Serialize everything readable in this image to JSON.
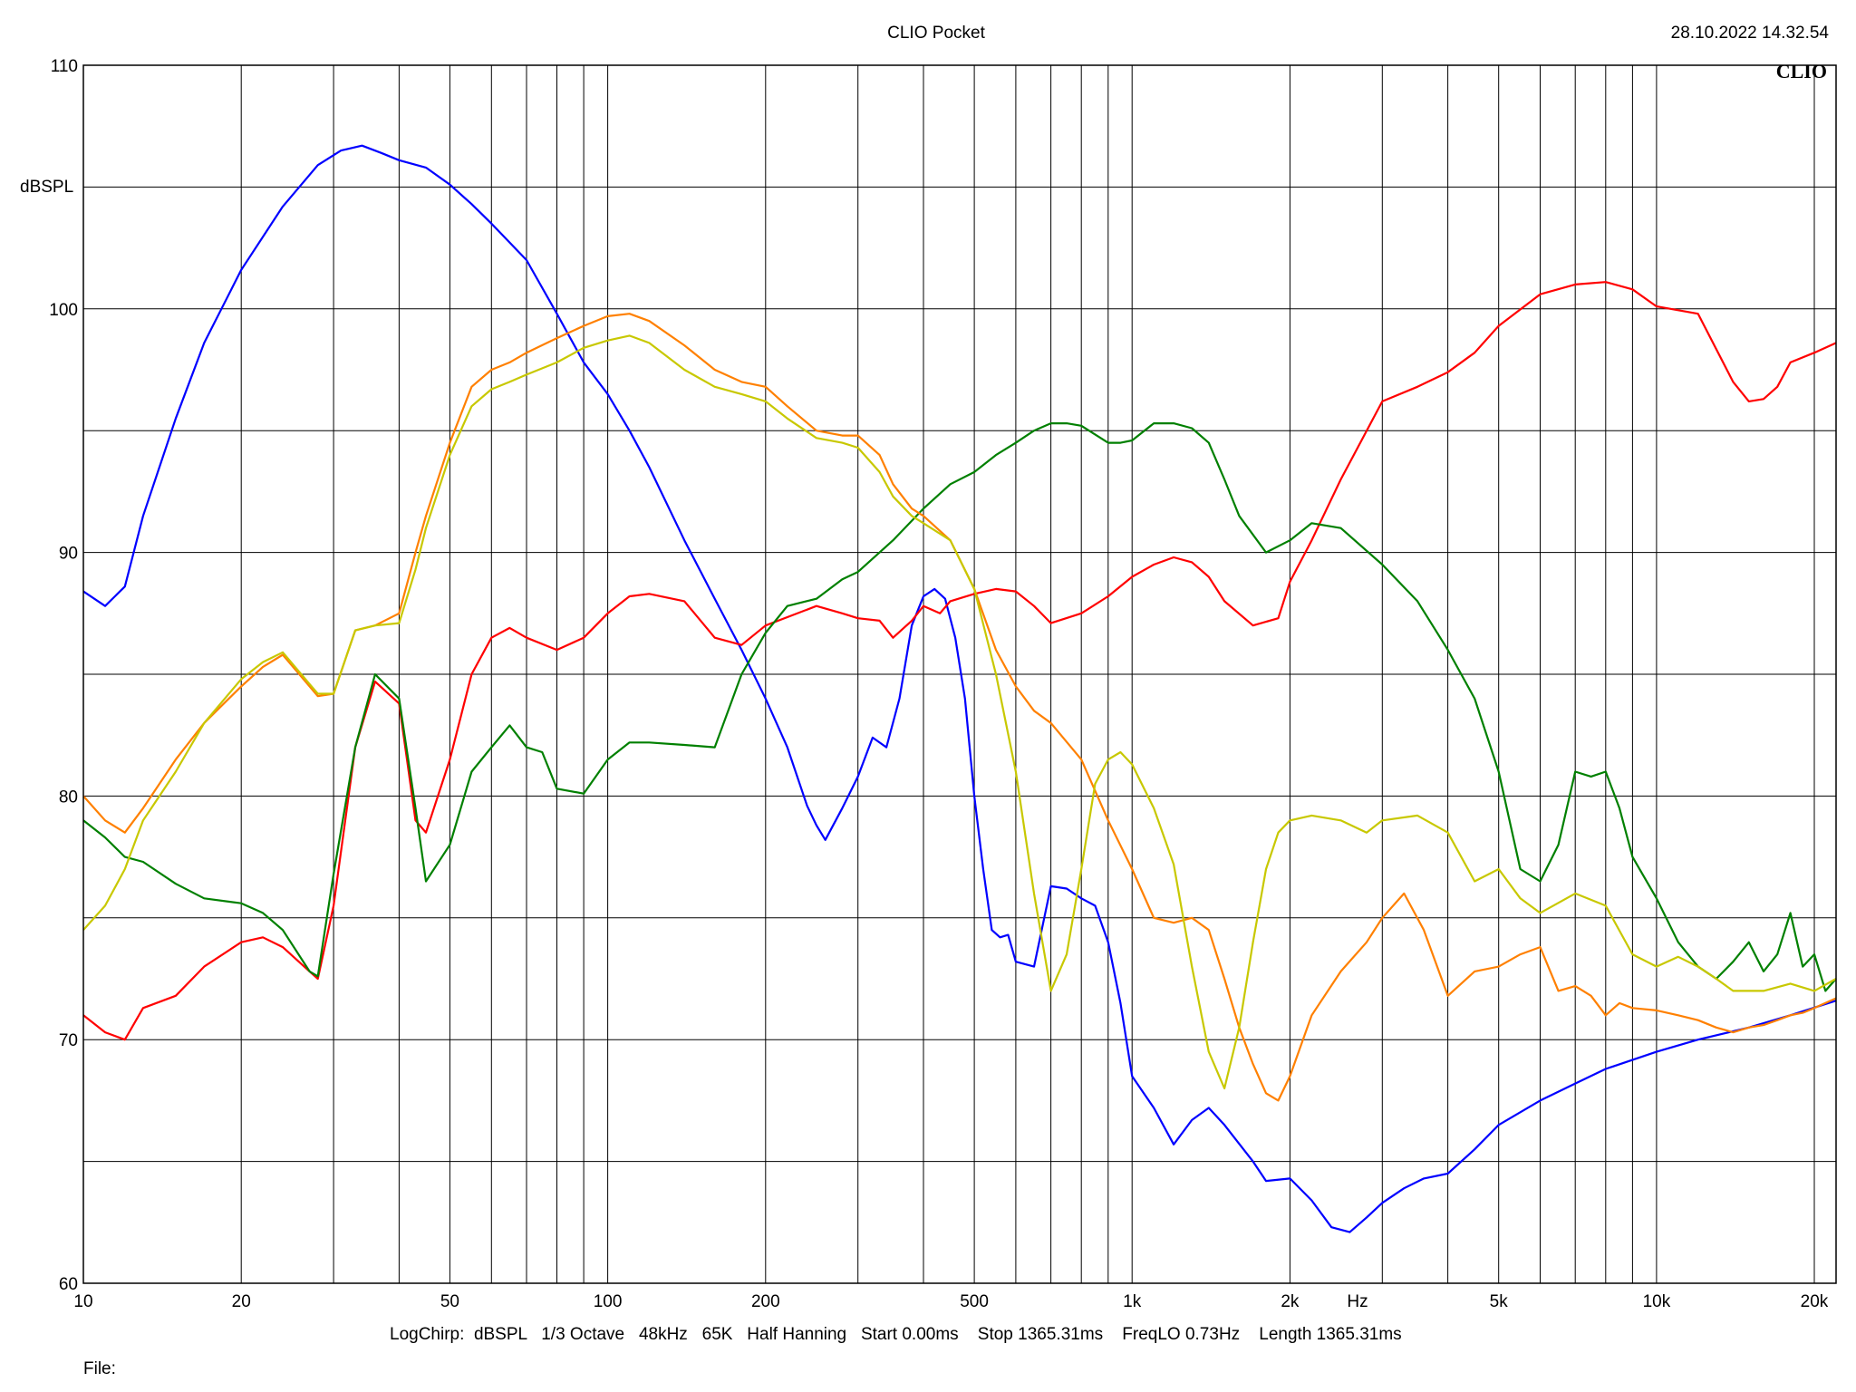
{
  "header": {
    "title": "CLIO Pocket",
    "timestamp": "28.10.2022 14.32.54",
    "logo": "CLIO"
  },
  "footer": {
    "info": "LogChirp:  dBSPL   1/3 Octave   48kHz   65K   Half Hanning   Start 0.00ms    Stop 1365.31ms    FreqLO 0.73Hz    Length 1365.31ms",
    "file_label": "File:"
  },
  "chart_data": {
    "type": "line",
    "title": "CLIO Pocket",
    "xlabel": "Hz",
    "ylabel": "dBSPL",
    "x_scale": "log",
    "xlim": [
      10,
      22000
    ],
    "ylim": [
      60,
      110
    ],
    "grid": true,
    "x_ticks": [
      {
        "value": 10,
        "label": "10"
      },
      {
        "value": 20,
        "label": "20"
      },
      {
        "value": 50,
        "label": "50"
      },
      {
        "value": 100,
        "label": "100"
      },
      {
        "value": 200,
        "label": "200"
      },
      {
        "value": 500,
        "label": "500"
      },
      {
        "value": 1000,
        "label": "1k"
      },
      {
        "value": 2000,
        "label": "2k"
      },
      {
        "value": 5000,
        "label": "5k"
      },
      {
        "value": 10000,
        "label": "10k"
      },
      {
        "value": 20000,
        "label": "20k"
      }
    ],
    "x_grid": [
      10,
      20,
      30,
      40,
      50,
      60,
      70,
      80,
      90,
      100,
      200,
      300,
      400,
      500,
      600,
      700,
      800,
      900,
      1000,
      2000,
      3000,
      4000,
      5000,
      6000,
      7000,
      8000,
      9000,
      10000,
      20000
    ],
    "y_ticks": [
      {
        "value": 60,
        "label": "60"
      },
      {
        "value": 70,
        "label": "70"
      },
      {
        "value": 80,
        "label": "80"
      },
      {
        "value": 90,
        "label": "90"
      },
      {
        "value": 100,
        "label": "100"
      },
      {
        "value": 110,
        "label": "110"
      }
    ],
    "y_grid": [
      60,
      65,
      70,
      75,
      80,
      85,
      90,
      95,
      100,
      105,
      110
    ],
    "series": [
      {
        "color": "#0000ff",
        "x": [
          10,
          11,
          12,
          13,
          15,
          17,
          20,
          24,
          28,
          31,
          34,
          37,
          40,
          45,
          50,
          55,
          60,
          70,
          80,
          90,
          100,
          110,
          120,
          140,
          160,
          180,
          200,
          220,
          240,
          250,
          260,
          280,
          300,
          320,
          340,
          360,
          380,
          400,
          420,
          440,
          460,
          480,
          500,
          520,
          540,
          560,
          580,
          600,
          650,
          700,
          750,
          800,
          850,
          900,
          950,
          1000,
          1100,
          1200,
          1300,
          1400,
          1500,
          1700,
          1800,
          2000,
          2200,
          2400,
          2600,
          2800,
          3000,
          3300,
          3600,
          4000,
          4500,
          5000,
          6000,
          7000,
          8000,
          10000,
          12000,
          15000,
          18000,
          22000
        ],
        "y": [
          88.4,
          87.8,
          88.6,
          91.5,
          95.5,
          98.6,
          101.6,
          104.2,
          105.9,
          106.5,
          106.7,
          106.4,
          106.1,
          105.8,
          105.1,
          104.3,
          103.5,
          102,
          99.8,
          97.8,
          96.5,
          95,
          93.5,
          90.5,
          88.1,
          86,
          84,
          82,
          79.6,
          78.8,
          78.2,
          79.5,
          80.8,
          82.4,
          82,
          84,
          87,
          88.2,
          88.5,
          88.1,
          86.5,
          84,
          80,
          77,
          74.5,
          74.2,
          74.3,
          73.2,
          73,
          76.3,
          76.2,
          75.8,
          75.5,
          74,
          71.5,
          68.5,
          67.2,
          65.7,
          66.7,
          67.2,
          66.5,
          65,
          64.2,
          64.3,
          63.4,
          62.3,
          62.1,
          62.7,
          63.3,
          63.9,
          64.3,
          64.5,
          65.5,
          66.5,
          67.5,
          68.2,
          68.8,
          69.5,
          70,
          70.5,
          71,
          71.6
        ]
      },
      {
        "color": "#ff0000",
        "x": [
          10,
          11,
          12,
          13,
          15,
          17,
          20,
          22,
          24,
          27,
          28,
          30,
          33,
          36,
          40,
          43,
          45,
          50,
          55,
          60,
          65,
          70,
          80,
          90,
          100,
          110,
          120,
          140,
          160,
          180,
          200,
          250,
          280,
          300,
          330,
          350,
          380,
          400,
          430,
          450,
          500,
          550,
          600,
          650,
          700,
          800,
          900,
          1000,
          1100,
          1200,
          1300,
          1400,
          1500,
          1700,
          1900,
          2000,
          2200,
          2500,
          3000,
          3500,
          4000,
          4500,
          5000,
          6000,
          7000,
          8000,
          9000,
          10000,
          12000,
          14000,
          15000,
          16000,
          17000,
          18000,
          20000,
          22000
        ],
        "y": [
          71,
          70.3,
          70,
          71.3,
          71.8,
          73,
          74,
          74.2,
          73.8,
          72.8,
          72.5,
          75.5,
          82,
          84.7,
          83.8,
          79,
          78.5,
          81.5,
          85,
          86.5,
          86.9,
          86.5,
          86,
          86.5,
          87.5,
          88.2,
          88.3,
          88,
          86.5,
          86.2,
          87,
          87.8,
          87.5,
          87.3,
          87.2,
          86.5,
          87.2,
          87.8,
          87.5,
          88,
          88.3,
          88.5,
          88.4,
          87.8,
          87.1,
          87.5,
          88.2,
          89,
          89.5,
          89.8,
          89.6,
          89,
          88,
          87,
          87.3,
          88.8,
          90.5,
          93,
          96.2,
          96.8,
          97.4,
          98.2,
          99.3,
          100.6,
          101,
          101.1,
          100.8,
          100.1,
          99.8,
          97,
          96.2,
          96.3,
          96.8,
          97.8,
          98.2,
          98.6
        ]
      },
      {
        "color": "#008000",
        "x": [
          10,
          11,
          12,
          13,
          15,
          17,
          20,
          22,
          24,
          27,
          28,
          30,
          33,
          36,
          40,
          43,
          45,
          50,
          55,
          60,
          65,
          70,
          75,
          80,
          90,
          100,
          110,
          120,
          140,
          160,
          180,
          200,
          220,
          250,
          280,
          300,
          350,
          400,
          450,
          500,
          550,
          600,
          650,
          700,
          750,
          800,
          900,
          950,
          1000,
          1100,
          1200,
          1300,
          1400,
          1500,
          1600,
          1800,
          2000,
          2200,
          2500,
          3000,
          3500,
          4000,
          4500,
          5000,
          5500,
          6000,
          6500,
          7000,
          7500,
          8000,
          8500,
          9000,
          10000,
          11000,
          12000,
          13000,
          14000,
          15000,
          16000,
          17000,
          18000,
          19000,
          20000,
          21000,
          22000
        ],
        "y": [
          79,
          78.3,
          77.5,
          77.3,
          76.4,
          75.8,
          75.6,
          75.2,
          74.5,
          72.8,
          72.6,
          76.8,
          82,
          85,
          84,
          79.5,
          76.5,
          78,
          81,
          82,
          82.9,
          82,
          81.8,
          80.3,
          80.1,
          81.5,
          82.2,
          82.2,
          82.1,
          82,
          85,
          86.7,
          87.8,
          88.1,
          88.9,
          89.2,
          90.5,
          91.8,
          92.8,
          93.3,
          94,
          94.5,
          95,
          95.3,
          95.3,
          95.2,
          94.5,
          94.5,
          94.6,
          95.3,
          95.3,
          95.1,
          94.5,
          93,
          91.5,
          90,
          90.5,
          91.2,
          91,
          89.5,
          88,
          86,
          84,
          81,
          77,
          76.5,
          78,
          81,
          80.8,
          81,
          79.5,
          77.5,
          75.8,
          74,
          73,
          72.5,
          73.2,
          74,
          72.8,
          73.5,
          75.2,
          73,
          73.5,
          72,
          72.5
        ]
      },
      {
        "color": "#ff8000",
        "x": [
          10,
          11,
          12,
          13,
          15,
          17,
          20,
          22,
          24,
          27,
          28,
          30,
          33,
          36,
          40,
          43,
          45,
          50,
          55,
          60,
          65,
          70,
          80,
          90,
          100,
          110,
          120,
          140,
          160,
          180,
          200,
          220,
          250,
          280,
          300,
          330,
          350,
          380,
          400,
          450,
          500,
          550,
          600,
          650,
          700,
          800,
          900,
          1000,
          1100,
          1200,
          1300,
          1400,
          1500,
          1600,
          1700,
          1800,
          1900,
          2000,
          2200,
          2500,
          2800,
          3000,
          3300,
          3600,
          4000,
          4500,
          5000,
          5500,
          6000,
          6500,
          7000,
          7500,
          8000,
          8500,
          9000,
          10000,
          11000,
          12000,
          13000,
          14000,
          15000,
          16000,
          17000,
          18000,
          19000,
          20000,
          22000
        ],
        "y": [
          80,
          79,
          78.5,
          79.5,
          81.5,
          83,
          84.5,
          85.3,
          85.8,
          84.5,
          84.1,
          84.2,
          86.8,
          87,
          87.5,
          90,
          91.5,
          94.5,
          96.8,
          97.5,
          97.8,
          98.2,
          98.8,
          99.3,
          99.7,
          99.8,
          99.5,
          98.5,
          97.5,
          97,
          96.8,
          96,
          95,
          94.8,
          94.8,
          94,
          92.8,
          91.8,
          91.5,
          90.5,
          88.5,
          86,
          84.5,
          83.5,
          83,
          81.5,
          79,
          77,
          75,
          74.8,
          75,
          74.5,
          72.5,
          70.5,
          69,
          67.8,
          67.5,
          68.5,
          71,
          72.8,
          74,
          75,
          76,
          74.5,
          71.8,
          72.8,
          73,
          73.5,
          73.8,
          72,
          72.2,
          71.8,
          71,
          71.5,
          71.3,
          71.2,
          71,
          70.8,
          70.5,
          70.3,
          70.5,
          70.6,
          70.8,
          71,
          71.1,
          71.3,
          71.7
        ]
      },
      {
        "color": "#c8c800",
        "x": [
          10,
          11,
          12,
          13,
          15,
          17,
          20,
          22,
          24,
          27,
          28,
          30,
          33,
          36,
          40,
          43,
          45,
          50,
          55,
          60,
          65,
          70,
          80,
          90,
          100,
          110,
          120,
          140,
          160,
          180,
          200,
          220,
          250,
          280,
          300,
          330,
          350,
          380,
          400,
          450,
          500,
          550,
          600,
          650,
          700,
          750,
          800,
          850,
          900,
          950,
          1000,
          1100,
          1200,
          1300,
          1400,
          1500,
          1600,
          1700,
          1800,
          1900,
          2000,
          2200,
          2500,
          2800,
          3000,
          3500,
          4000,
          4500,
          5000,
          5500,
          6000,
          7000,
          8000,
          9000,
          10000,
          11000,
          12000,
          13000,
          14000,
          15000,
          16000,
          18000,
          20000,
          22000
        ],
        "y": [
          74.5,
          75.5,
          77,
          79,
          81,
          83,
          84.8,
          85.5,
          85.9,
          84.6,
          84.2,
          84.2,
          86.8,
          87,
          87.1,
          89.3,
          91,
          94,
          96,
          96.7,
          97,
          97.3,
          97.8,
          98.4,
          98.7,
          98.9,
          98.6,
          97.5,
          96.8,
          96.5,
          96.2,
          95.5,
          94.7,
          94.5,
          94.3,
          93.3,
          92.3,
          91.5,
          91.2,
          90.5,
          88.5,
          85,
          81,
          76,
          72,
          73.5,
          77,
          80.5,
          81.5,
          81.8,
          81.3,
          79.5,
          77.2,
          73,
          69.5,
          68,
          70.5,
          74,
          77,
          78.5,
          79,
          79.2,
          79,
          78.5,
          79,
          79.2,
          78.5,
          76.5,
          77,
          75.8,
          75.2,
          76,
          75.5,
          73.5,
          73,
          73.4,
          73,
          72.5,
          72,
          72,
          72,
          72.3,
          72,
          72.5
        ]
      }
    ]
  }
}
